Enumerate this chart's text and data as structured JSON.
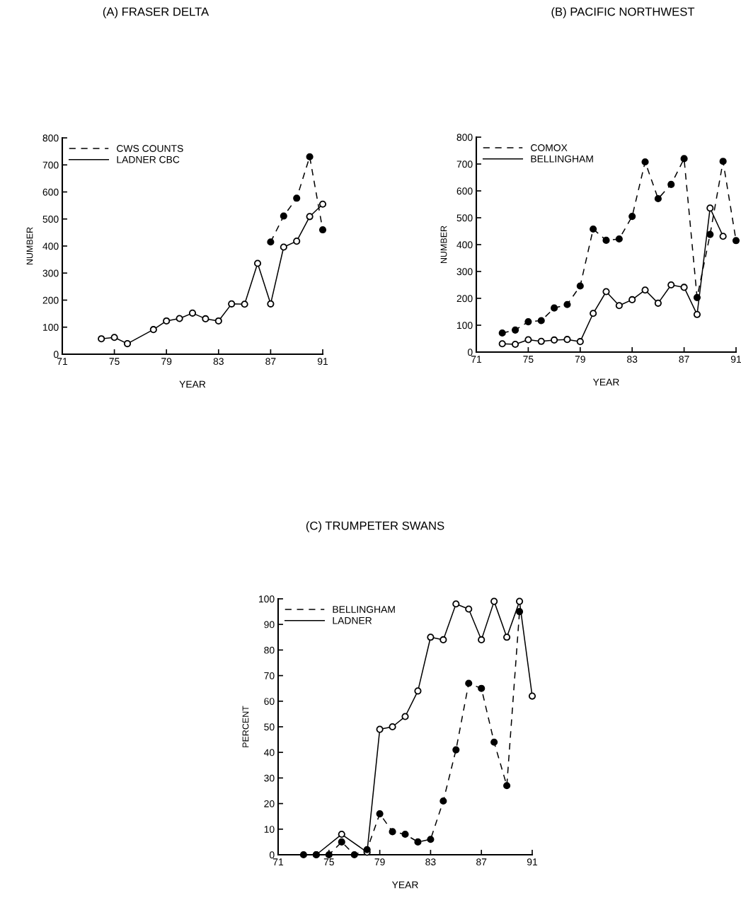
{
  "chart_data": [
    {
      "type": "line",
      "title": "(A) FRASER DELTA",
      "xlabel": "YEAR",
      "ylabel": "NUMBER",
      "xlim": [
        71,
        91
      ],
      "xticks": [
        71,
        75,
        79,
        83,
        87,
        91
      ],
      "ylim": [
        0,
        800
      ],
      "yticks": [
        0,
        100,
        200,
        300,
        400,
        500,
        600,
        700,
        800
      ],
      "legend": "top left",
      "marker": "circle",
      "grid": false,
      "series": [
        {
          "name": "CWS COUNTS",
          "color": "#000000",
          "line_style": "dashed",
          "x": [
            87,
            88,
            89,
            90,
            91
          ],
          "values": [
            415,
            511,
            577,
            730,
            460
          ]
        },
        {
          "name": "LADNER CBC",
          "color": "#000000",
          "line_style": "solid",
          "x": [
            74,
            75,
            76,
            78,
            79,
            80,
            81,
            82,
            83,
            84,
            85,
            86,
            87,
            88,
            89,
            90,
            91
          ],
          "values": [
            57,
            62,
            39,
            91,
            123,
            132,
            152,
            131,
            123,
            186,
            185,
            336,
            186,
            396,
            418,
            509,
            555
          ]
        }
      ]
    },
    {
      "type": "line",
      "title": "(B) PACIFIC NORTHWEST",
      "xlabel": "YEAR",
      "ylabel": "NUMBER",
      "xlim": [
        71,
        91
      ],
      "xticks": [
        71,
        75,
        79,
        83,
        87,
        91
      ],
      "ylim": [
        0,
        800
      ],
      "yticks": [
        0,
        100,
        200,
        300,
        400,
        500,
        600,
        700,
        800
      ],
      "legend": "top left",
      "marker": "circle",
      "grid": false,
      "series": [
        {
          "name": "COMOX",
          "color": "#000000",
          "line_style": "dashed",
          "x": [
            73,
            74,
            75,
            76,
            77,
            78,
            79,
            80,
            81,
            82,
            83,
            84,
            85,
            86,
            87,
            88,
            89,
            90,
            91
          ],
          "values": [
            71,
            82,
            113,
            117,
            164,
            177,
            246,
            458,
            416,
            421,
            505,
            708,
            571,
            624,
            720,
            203,
            438,
            710,
            415
          ]
        },
        {
          "name": "BELLINGHAM",
          "color": "#000000",
          "line_style": "solid",
          "x": [
            73,
            74,
            75,
            76,
            77,
            78,
            79,
            80,
            81,
            82,
            83,
            84,
            85,
            86,
            87,
            88,
            89,
            90
          ],
          "values": [
            31,
            29,
            46,
            40,
            45,
            47,
            39,
            144,
            225,
            173,
            195,
            231,
            182,
            250,
            241,
            140,
            536,
            431
          ]
        }
      ]
    },
    {
      "type": "line",
      "title": "(C) TRUMPETER SWANS",
      "xlabel": "YEAR",
      "ylabel": "PERCENT",
      "xlim": [
        71,
        91
      ],
      "xticks": [
        71,
        75,
        79,
        83,
        87,
        91
      ],
      "ylim": [
        0,
        100
      ],
      "yticks": [
        0,
        10,
        20,
        30,
        40,
        50,
        60,
        70,
        80,
        90,
        100
      ],
      "legend": "top left",
      "marker": "circle",
      "grid": false,
      "series": [
        {
          "name": "BELLINGHAM",
          "color": "#000000",
          "line_style": "dashed",
          "x": [
            73,
            74,
            75,
            76,
            77,
            78,
            79,
            80,
            81,
            82,
            83,
            84,
            85,
            86,
            87,
            88,
            89,
            90
          ],
          "values": [
            0,
            0,
            0,
            5,
            0,
            2,
            16,
            9,
            8,
            5,
            6,
            21,
            41,
            67,
            65,
            44,
            27,
            95
          ]
        },
        {
          "name": "LADNER",
          "color": "#000000",
          "line_style": "solid",
          "x": [
            74,
            76,
            78,
            79,
            80,
            81,
            82,
            83,
            84,
            85,
            86,
            87,
            88,
            89,
            90,
            91
          ],
          "values": [
            0,
            8,
            1,
            49,
            50,
            54,
            64,
            85,
            84,
            98,
            96,
            84,
            99,
            85,
            99,
            62
          ]
        }
      ]
    }
  ]
}
